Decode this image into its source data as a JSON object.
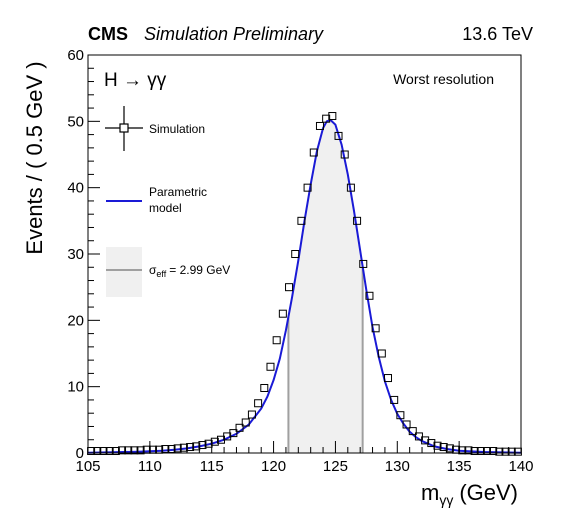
{
  "header": {
    "experiment": "CMS",
    "tag": "Simulation Preliminary",
    "energy": "13.6 TeV"
  },
  "annotations": {
    "process": "H → γγ",
    "category": "Worst resolution"
  },
  "legend": {
    "placement": "top-left",
    "simulation_label": "Simulation",
    "model_label_line1": "Parametric",
    "model_label_line2": "model",
    "sigma_symbol": "σ",
    "sigma_sub": "eff",
    "sigma_value": "= 2.99 GeV"
  },
  "colors": {
    "model_line": "#1a1ad6",
    "marker": "#000000",
    "band_fill": "#f0f0f0",
    "band_edge": "#a0a0a0"
  },
  "chart_data": {
    "type": "scatter",
    "xlabel_main": "m",
    "xlabel_sub": "γγ",
    "xlabel_unit": "(GeV)",
    "ylabel": "Events / ( 0.5 GeV )",
    "xlim": [
      105,
      140
    ],
    "ylim": [
      0,
      60
    ],
    "x_ticks": [
      105,
      110,
      115,
      120,
      125,
      130,
      135,
      140
    ],
    "y_ticks": [
      0,
      10,
      20,
      30,
      40,
      50,
      60
    ],
    "sigma_eff_window": [
      121.2,
      127.2
    ],
    "series": [
      {
        "name": "Simulation",
        "kind": "markers",
        "x": [
          105.25,
          105.75,
          106.25,
          106.75,
          107.25,
          107.75,
          108.25,
          108.75,
          109.25,
          109.75,
          110.25,
          110.75,
          111.25,
          111.75,
          112.25,
          112.75,
          113.25,
          113.75,
          114.25,
          114.75,
          115.25,
          115.75,
          116.25,
          116.75,
          117.25,
          117.75,
          118.25,
          118.75,
          119.25,
          119.75,
          120.25,
          120.75,
          121.25,
          121.75,
          122.25,
          122.75,
          123.25,
          123.75,
          124.25,
          124.75,
          125.25,
          125.75,
          126.25,
          126.75,
          127.25,
          127.75,
          128.25,
          128.75,
          129.25,
          129.75,
          130.25,
          130.75,
          131.25,
          131.75,
          132.25,
          132.75,
          133.25,
          133.75,
          134.25,
          134.75,
          135.25,
          135.75,
          136.25,
          136.75,
          137.25,
          137.75,
          138.25,
          138.75,
          139.25,
          139.75
        ],
        "y": [
          0.3,
          0.3,
          0.3,
          0.3,
          0.3,
          0.4,
          0.4,
          0.4,
          0.4,
          0.5,
          0.5,
          0.5,
          0.6,
          0.6,
          0.7,
          0.8,
          0.9,
          1.0,
          1.2,
          1.4,
          1.7,
          2.0,
          2.5,
          3.0,
          3.8,
          4.6,
          5.8,
          7.5,
          9.8,
          13.0,
          17.0,
          21.0,
          25.0,
          30.0,
          35.0,
          40.0,
          45.3,
          49.3,
          50.4,
          50.8,
          47.8,
          45.0,
          40.0,
          35.0,
          28.5,
          23.7,
          18.8,
          15.0,
          11.3,
          8.0,
          5.7,
          4.3,
          3.3,
          2.5,
          1.9,
          1.5,
          1.1,
          0.9,
          0.7,
          0.5,
          0.4,
          0.4,
          0.3,
          0.3,
          0.3,
          0.3,
          0.2,
          0.2,
          0.2,
          0.2
        ]
      },
      {
        "name": "Parametric model",
        "kind": "line",
        "x": [
          105,
          107,
          109,
          111,
          112,
          113,
          114,
          115,
          116,
          117,
          118,
          119,
          119.5,
          120,
          120.5,
          121,
          121.5,
          122,
          122.5,
          123,
          123.5,
          124,
          124.3,
          124.6,
          125,
          125.5,
          126,
          126.5,
          127,
          127.5,
          128,
          128.5,
          129,
          129.5,
          130,
          130.5,
          131,
          131.5,
          132,
          133,
          134,
          135,
          137,
          140
        ],
        "y": [
          0.05,
          0.1,
          0.2,
          0.35,
          0.5,
          0.7,
          1.0,
          1.4,
          2.0,
          2.9,
          4.3,
          6.7,
          8.5,
          11.0,
          14.2,
          18.5,
          23.5,
          29.0,
          35.0,
          40.5,
          45.5,
          49.0,
          50.0,
          50.2,
          49.5,
          46.5,
          42.0,
          36.5,
          30.5,
          24.5,
          19.0,
          14.5,
          10.8,
          8.0,
          5.9,
          4.4,
          3.2,
          2.4,
          1.8,
          1.0,
          0.6,
          0.35,
          0.15,
          0.05
        ]
      }
    ]
  }
}
